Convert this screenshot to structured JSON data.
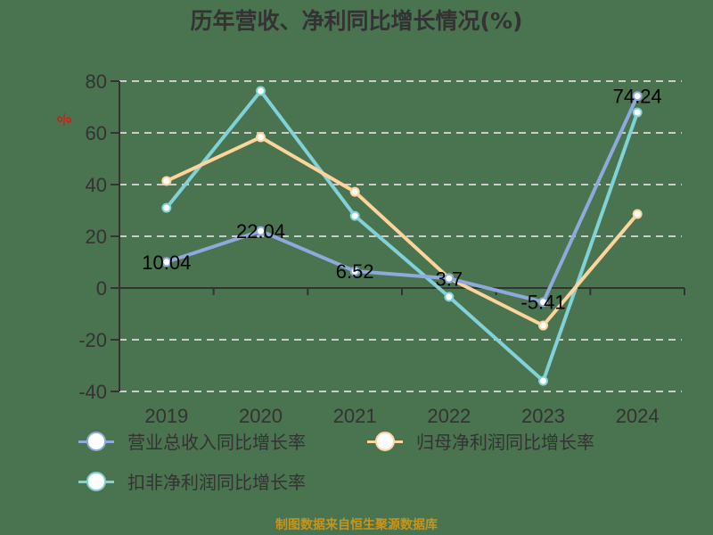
{
  "title": "历年营收、净利同比增长情况(%)",
  "y_unit_label": "%",
  "source_text": "制图数据来自恒生聚源数据库",
  "colors": {
    "revenue": "#8eaadd",
    "net_profit": "#fdd49b",
    "deducted_profit": "#80d2d8",
    "axis": "#333333",
    "grid": "#cccccc",
    "unit_label": "#ff0000",
    "source": "#c8951c"
  },
  "legend": [
    {
      "label": "营业总收入同比增长率",
      "color": "#8eaadd"
    },
    {
      "label": "归母净利润同比增长率",
      "color": "#fdd49b"
    },
    {
      "label": "扣非净利润同比增长率",
      "color": "#80d2d8"
    }
  ],
  "chart_data": {
    "type": "line",
    "title": "历年营收、净利同比增长情况(%)",
    "xlabel": "",
    "ylabel": "%",
    "categories": [
      "2019",
      "2020",
      "2021",
      "2022",
      "2023",
      "2024"
    ],
    "ylim": [
      -40,
      80
    ],
    "yticks": [
      80,
      60,
      40,
      20,
      0,
      -20,
      -40
    ],
    "grid": true,
    "legend_position": "bottom",
    "series": [
      {
        "name": "营业总收入同比增长率",
        "values": [
          10.04,
          22.04,
          6.52,
          3.7,
          -5.41,
          74.24
        ],
        "labels": [
          "10.04",
          "22.04",
          "6.52",
          "3.7",
          "-5.41",
          "74.24"
        ]
      },
      {
        "name": "归母净利润同比增长率",
        "values": [
          41.4,
          58.3,
          37.2,
          3.8,
          -14.5,
          28.6
        ]
      },
      {
        "name": "扣非净利润同比增长率",
        "values": [
          31.0,
          76.2,
          27.9,
          -3.4,
          -35.9,
          67.9
        ]
      }
    ]
  }
}
